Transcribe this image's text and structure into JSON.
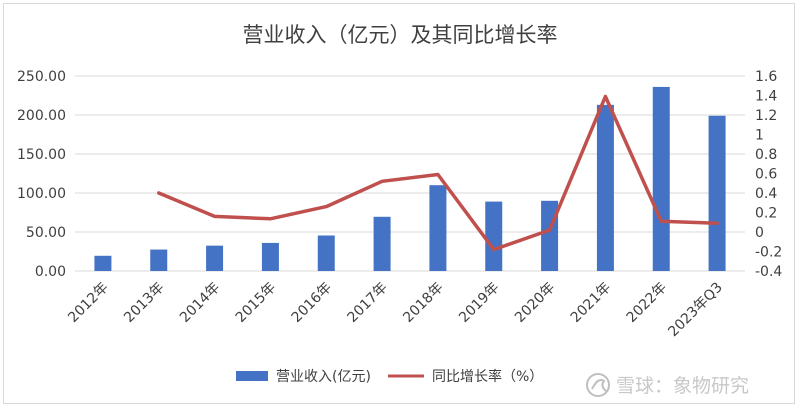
{
  "chart_data": {
    "type": "bar+line",
    "title": "营业收入（亿元）及其同比增长率",
    "categories": [
      "2012年",
      "2013年",
      "2014年",
      "2015年",
      "2016年",
      "2017年",
      "2018年",
      "2019年",
      "2020年",
      "2021年",
      "2022年",
      "2023年Q3"
    ],
    "series": [
      {
        "name": "营业收入(亿元)",
        "type": "bar",
        "axis": "left",
        "color": "#4472C4",
        "values": [
          19.5,
          27.5,
          32.5,
          36.0,
          45.5,
          69.5,
          110.0,
          89.0,
          90.0,
          213.0,
          236.0,
          199.0
        ]
      },
      {
        "name": "同比增长率（%）",
        "type": "line",
        "axis": "right",
        "color": "#C0504D",
        "values": [
          null,
          0.4,
          0.16,
          0.135,
          0.26,
          0.52,
          0.59,
          -0.18,
          0.02,
          1.39,
          0.11,
          0.09
        ]
      }
    ],
    "y_left": {
      "min": 0,
      "max": 250,
      "step": 50,
      "tick_labels": [
        "0.00",
        "50.00",
        "100.00",
        "150.00",
        "200.00",
        "250.00"
      ]
    },
    "y_right": {
      "min": -0.4,
      "max": 1.6,
      "step": 0.2,
      "tick_labels": [
        "-0.4",
        "-0.2",
        "0",
        "0.2",
        "0.4",
        "0.6",
        "0.8",
        "1",
        "1.2",
        "1.4",
        "1.6"
      ]
    },
    "grid": true,
    "legend_position": "bottom"
  },
  "watermark": {
    "text": "雪球：象物研究"
  }
}
